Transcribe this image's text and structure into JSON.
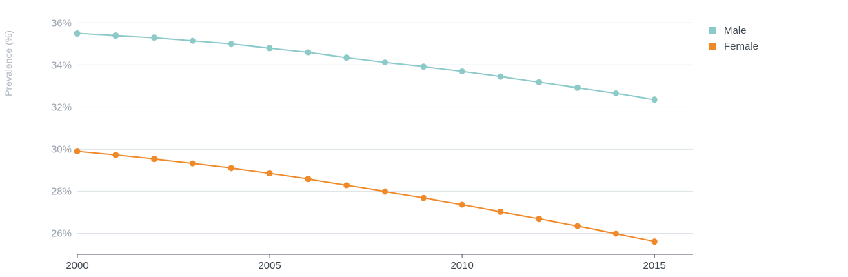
{
  "chart_data": {
    "type": "line",
    "title": "",
    "ylabel": "Prevalence (%)",
    "xlabel": "",
    "x": [
      2000,
      2001,
      2002,
      2003,
      2004,
      2005,
      2006,
      2007,
      2008,
      2009,
      2010,
      2011,
      2012,
      2013,
      2014,
      2015
    ],
    "xlim": [
      2000,
      2016
    ],
    "x_ticks": [
      "2000",
      "2005",
      "2010",
      "2015"
    ],
    "ylim": [
      25,
      36.5
    ],
    "y_ticks": [
      "26%",
      "28%",
      "30%",
      "32%",
      "34%",
      "36%"
    ],
    "grid": "horizontal",
    "legend_position": "top-right",
    "series": [
      {
        "name": "Male",
        "color": "#8cc9c9",
        "values": [
          35.5,
          35.4,
          35.3,
          35.15,
          35.0,
          34.8,
          34.6,
          34.35,
          34.12,
          33.92,
          33.7,
          33.45,
          33.18,
          32.92,
          32.65,
          32.35
        ]
      },
      {
        "name": "Female",
        "color": "#f0892a",
        "values": [
          29.9,
          29.72,
          29.53,
          29.32,
          29.1,
          28.85,
          28.58,
          28.28,
          27.98,
          27.68,
          27.36,
          27.02,
          26.68,
          26.34,
          25.98,
          25.6
        ]
      }
    ]
  }
}
